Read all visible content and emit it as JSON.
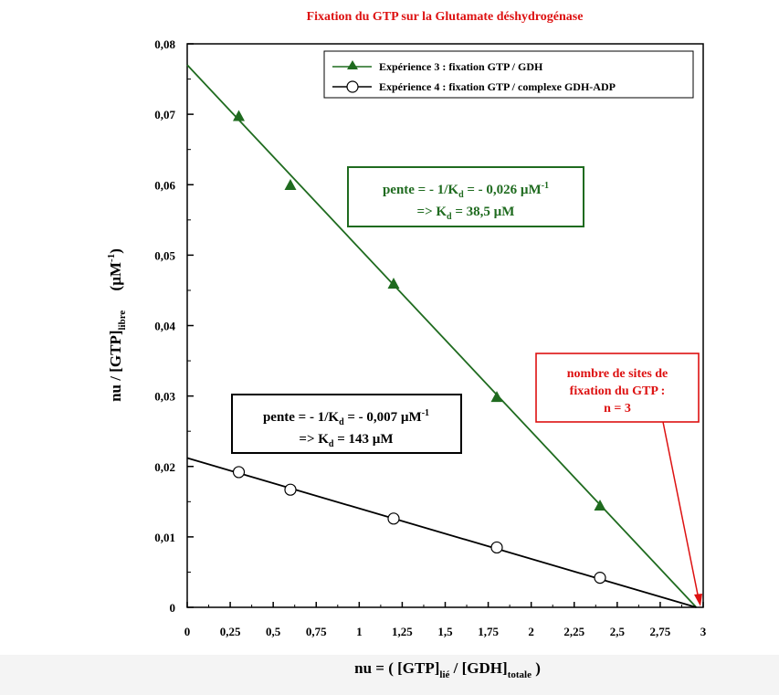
{
  "chart_data": {
    "type": "scatter",
    "title": "Fixation du GTP sur la Glutamate déshydrogénase",
    "xlabel": {
      "prefix": "nu = ( [GTP]",
      "sub1": "lié",
      "middle": " / [GDH]",
      "sub2": "totale",
      "suffix": " )"
    },
    "ylabel": {
      "prefix": "nu / [GTP]",
      "sub": "libre",
      "unit_prefix": "(µM",
      "unit_sup": "-1",
      "unit_suffix": ")"
    },
    "xlim": [
      0,
      3
    ],
    "ylim": [
      0,
      0.08
    ],
    "x_ticks": [
      {
        "v": 0,
        "label": "0"
      },
      {
        "v": 0.25,
        "label": "0,25"
      },
      {
        "v": 0.5,
        "label": "0,5"
      },
      {
        "v": 0.75,
        "label": "0,75"
      },
      {
        "v": 1,
        "label": "1"
      },
      {
        "v": 1.25,
        "label": "1,25"
      },
      {
        "v": 1.5,
        "label": "1,5"
      },
      {
        "v": 1.75,
        "label": "1,75"
      },
      {
        "v": 2,
        "label": "2"
      },
      {
        "v": 2.25,
        "label": "2,25"
      },
      {
        "v": 2.5,
        "label": "2,5"
      },
      {
        "v": 2.75,
        "label": "2,75"
      },
      {
        "v": 3,
        "label": "3"
      }
    ],
    "y_ticks": [
      {
        "v": 0,
        "label": "0"
      },
      {
        "v": 0.01,
        "label": "0,01"
      },
      {
        "v": 0.02,
        "label": "0,02"
      },
      {
        "v": 0.03,
        "label": "0,03"
      },
      {
        "v": 0.04,
        "label": "0,04"
      },
      {
        "v": 0.05,
        "label": "0,05"
      },
      {
        "v": 0.06,
        "label": "0,06"
      },
      {
        "v": 0.07,
        "label": "0,07"
      },
      {
        "v": 0.08,
        "label": "0,08"
      }
    ],
    "series": [
      {
        "name": "Expérience 3 : fixation GTP / GDH",
        "marker": "triangle",
        "color": "#1f6b1f",
        "x": [
          0.3,
          0.6,
          1.2,
          1.8,
          2.4
        ],
        "y": [
          0.0697,
          0.0599,
          0.0459,
          0.0298,
          0.0144
        ],
        "fit": {
          "x": [
            0,
            2.96
          ],
          "y": [
            0.077,
            0
          ]
        }
      },
      {
        "name": "Expérience 4 : fixation GTP / complexe GDH-ADP",
        "marker": "circle",
        "color": "#000000",
        "x": [
          0.3,
          0.6,
          1.2,
          1.8,
          2.4
        ],
        "y": [
          0.0192,
          0.0167,
          0.0126,
          0.0085,
          0.0042
        ],
        "fit": {
          "x": [
            0,
            2.96
          ],
          "y": [
            0.0212,
            0
          ]
        }
      }
    ],
    "legend": {
      "placement": "top-right"
    },
    "annotations": {
      "green_box": {
        "line1_prefix": "pente = - 1/K",
        "line1_sub": "d",
        "line1_mid": " = - 0,026 µM",
        "line1_sup": "-1",
        "line2_prefix": "=> K",
        "line2_sub": "d",
        "line2_suffix": " = 38,5 µM",
        "color": "#1f6b1f"
      },
      "black_box": {
        "line1_prefix": "pente = - 1/K",
        "line1_sub": "d",
        "line1_mid": " = - 0,007 µM",
        "line1_sup": "-1",
        "line2_prefix": "=> K",
        "line2_sub": "d",
        "line2_suffix": " = 143 µM",
        "color": "#000000"
      },
      "red_box": {
        "line1": "nombre de sites de",
        "line2": "fixation du GTP :",
        "line3": "n = 3",
        "color": "#dd1111"
      }
    },
    "title_color": "#dd1111",
    "grid": false
  }
}
